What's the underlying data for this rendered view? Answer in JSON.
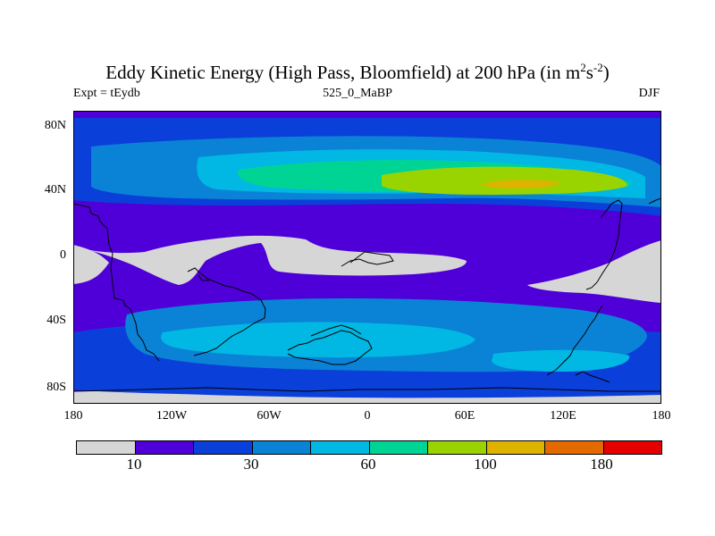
{
  "title": {
    "main": "Eddy Kinetic Energy (High Pass, Bloomfield) at 200 hPa (in m",
    "sup1": "2",
    "mid": "s",
    "sup2": "-2",
    "end": ")"
  },
  "subtitle": {
    "left": "Expt = tEydb",
    "center": "525_0_MaBP",
    "right": "DJF"
  },
  "axes": {
    "y_ticks": [
      "80N",
      "40N",
      "0",
      "40S",
      "80S"
    ],
    "x_ticks": [
      "180",
      "120W",
      "60W",
      "0",
      "60E",
      "120E",
      "180"
    ]
  },
  "colors": {
    "land_gray": "#d6d6d6",
    "level1": "#4f00d8",
    "level2": "#0b3fd9",
    "level3": "#0a82d6",
    "level4": "#00b8e3",
    "level5": "#00d495",
    "level6": "#99d400",
    "level7": "#ddb300",
    "level8": "#e46a00",
    "level9": "#e50000"
  },
  "colorbar": {
    "colors": [
      "#d6d6d6",
      "#4f00d8",
      "#0b3fd9",
      "#0a82d6",
      "#00b8e3",
      "#00d495",
      "#99d400",
      "#ddb300",
      "#e46a00",
      "#e50000"
    ],
    "labels": [
      "10",
      "30",
      "60",
      "100",
      "180"
    ]
  }
}
